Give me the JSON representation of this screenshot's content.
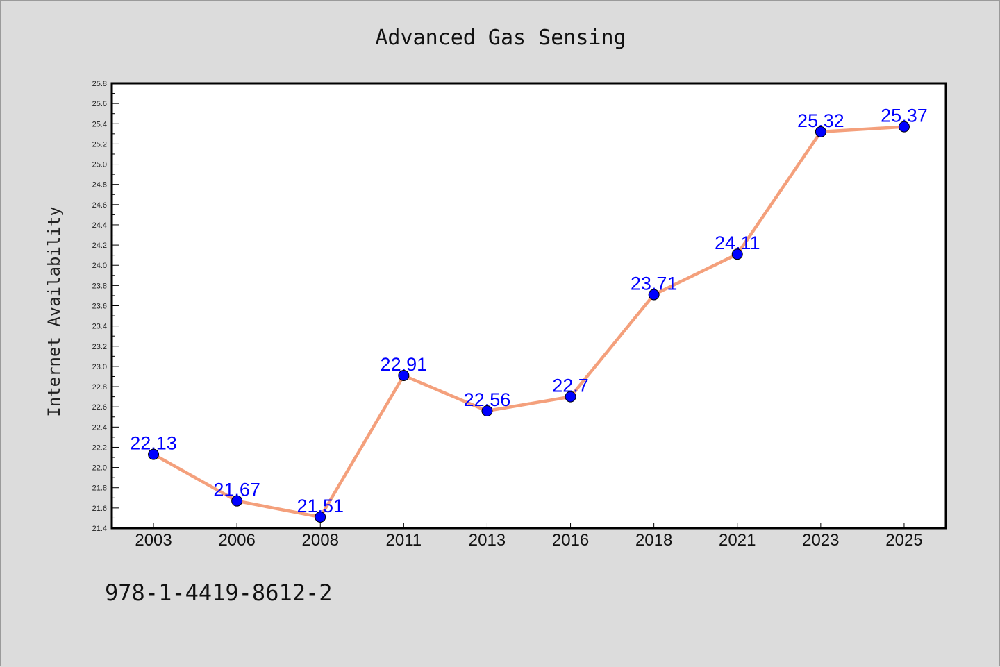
{
  "footnote": "978-1-4419-8612-2",
  "colors": {
    "background": "#dcdcdc",
    "plot_background": "#ffffff",
    "line": "#f4a07c",
    "marker": "#0000ff",
    "data_label": "#0000ff"
  },
  "chart_data": {
    "type": "line",
    "title": "Advanced Gas Sensing",
    "xlabel": "",
    "ylabel": "Internet Availability",
    "categories": [
      "2003",
      "2006",
      "2008",
      "2011",
      "2013",
      "2016",
      "2018",
      "2021",
      "2023",
      "2025"
    ],
    "series": [
      {
        "values": [
          22.13,
          21.67,
          21.51,
          22.91,
          22.56,
          22.7,
          23.71,
          24.11,
          25.32,
          25.37
        ],
        "data_labels": [
          "22.13",
          "21.67",
          "21.51",
          "22.91",
          "22.56",
          "22.7",
          "23.71",
          "24.11",
          "25.32",
          "25.37"
        ]
      }
    ],
    "ylim": [
      21.4,
      25.8
    ],
    "yticks": [
      "21.4",
      "21.6",
      "21.8",
      "22.0",
      "22.2",
      "22.4",
      "22.6",
      "22.8",
      "23.0",
      "23.2",
      "23.4",
      "23.6",
      "23.8",
      "24.0",
      "24.2",
      "24.4",
      "24.6",
      "24.8",
      "25.0",
      "25.2",
      "25.4",
      "25.6",
      "25.8"
    ],
    "grid": false,
    "legend": "none"
  }
}
